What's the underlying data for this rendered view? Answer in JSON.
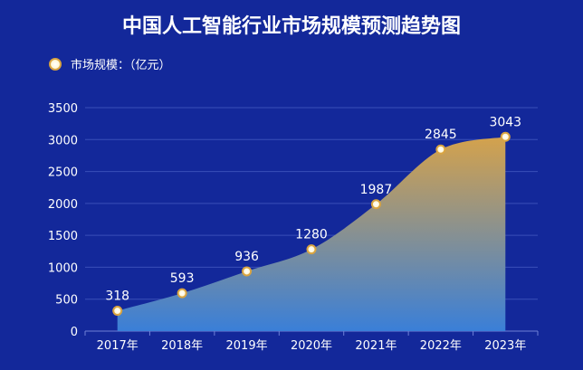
{
  "chart_data": {
    "type": "area",
    "title": "中国人工智能行业市场规模预测趋势图",
    "categories": [
      "2017年",
      "2018年",
      "2019年",
      "2020年",
      "2021年",
      "2022年",
      "2023年"
    ],
    "series": [
      {
        "name": "市场规模：（亿元）",
        "values": [
          318,
          593,
          936,
          1280,
          1987,
          2845,
          3043
        ]
      }
    ],
    "ylim": [
      0,
      3500
    ],
    "yticks": [
      "0",
      "500",
      "1000",
      "1500",
      "2000",
      "2500",
      "3000",
      "3500"
    ],
    "xlabel": "",
    "ylabel": "",
    "grid": true,
    "legend_position": "top-left",
    "colors": {
      "background": "#13289a",
      "area_top": "#d4a24c",
      "area_bottom": "#3a7fd8",
      "marker_fill": "#fff4c8",
      "marker_stroke": "#d9a441"
    }
  }
}
